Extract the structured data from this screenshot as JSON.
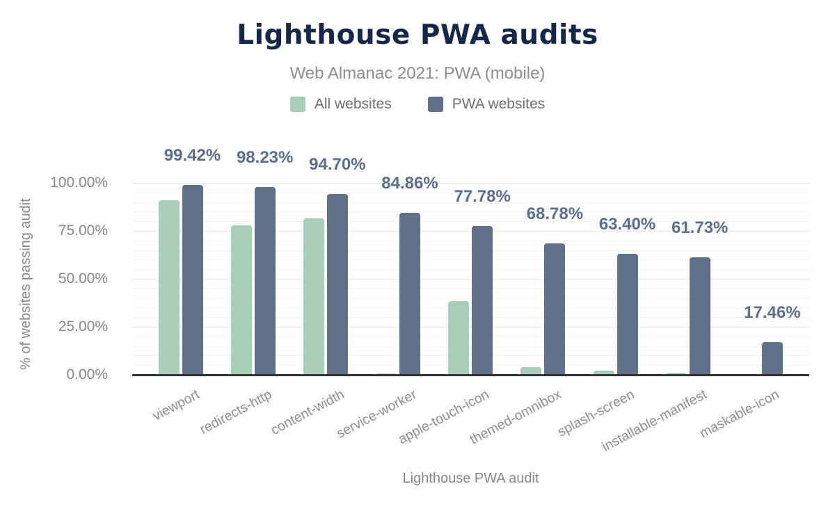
{
  "chart_data": {
    "type": "bar",
    "title": "Lighthouse PWA audits",
    "subtitle": "Web Almanac 2021: PWA (mobile)",
    "xlabel": "Lighthouse PWA audit",
    "ylabel": "% of websites passing audit",
    "categories": [
      "viewport",
      "redirects-http",
      "content-width",
      "service-worker",
      "apple-touch-icon",
      "themed-omnibox",
      "splash-screen",
      "installable-manifest",
      "maskable-icon"
    ],
    "series": [
      {
        "name": "All websites",
        "color": "#a8cdb9",
        "values": [
          91.2,
          78.2,
          81.8,
          1.2,
          38.9,
          4.2,
          2.4,
          1.3,
          0.1
        ]
      },
      {
        "name": "PWA websites",
        "color": "#5f7089",
        "values": [
          99.42,
          98.23,
          94.7,
          84.86,
          77.78,
          68.78,
          63.4,
          61.73,
          17.46
        ],
        "data_labels": [
          "99.42%",
          "98.23%",
          "94.70%",
          "84.86%",
          "77.78%",
          "68.78%",
          "63.40%",
          "61.73%",
          "17.46%"
        ]
      }
    ],
    "ylim": [
      0,
      100
    ],
    "y_ticks": [
      {
        "value": 0,
        "label": "0.00%"
      },
      {
        "value": 25,
        "label": "25.00%"
      },
      {
        "value": 50,
        "label": "50.00%"
      },
      {
        "value": 75,
        "label": "75.00%"
      },
      {
        "value": 100,
        "label": "100.00%"
      }
    ],
    "grid": {
      "minor_step": 5,
      "major_step": 25,
      "on": true
    },
    "legend_position": "top",
    "palette": {
      "title": "#15284b",
      "subtitle": "#8b8e94",
      "axis_text": "#84878c",
      "data_label": "#5a6e91",
      "axis_line": "#333333"
    }
  }
}
